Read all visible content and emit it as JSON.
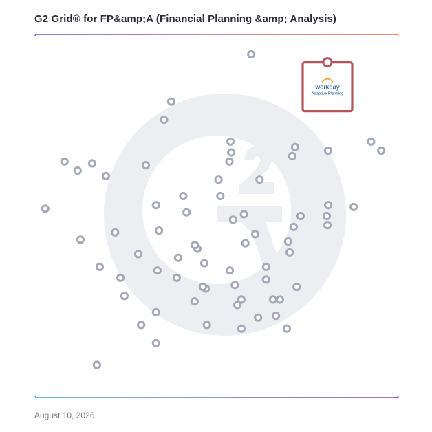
{
  "header": {
    "title": "G2 Grid® for FP&amp;A (Financial Planning &amp; Analysis)"
  },
  "footer": {
    "date": "August 10, 2026"
  },
  "highlight": {
    "brand": "workday",
    "product": "Adaptive Planning",
    "border_color": "#b5565a",
    "brand_color": "#0b4d8f",
    "arc_color": "#f39a1e"
  },
  "colors": {
    "watermark": "#eceef2",
    "point_stroke": "#a3a9b6",
    "frame_top_left": "#6a56c6",
    "frame_top_right": "#f26b3a",
    "frame_bottom_left": "#3fa0d8",
    "frame_bottom_right": "#8a3fb0"
  },
  "chart_data": {
    "type": "scatter",
    "title": "G2 Grid® for FP&amp;A (Financial Planning &amp; Analysis)",
    "xlabel": "",
    "ylabel": "",
    "xlim": [
      0,
      100
    ],
    "ylim": [
      0,
      100
    ],
    "grid": "quadrants",
    "points": [
      {
        "x": 59.5,
        "y": 94.5
      },
      {
        "x": 37.5,
        "y": 81.5
      },
      {
        "x": 35.5,
        "y": 76.5
      },
      {
        "x": 92.5,
        "y": 70.5
      },
      {
        "x": 95.3,
        "y": 68.0
      },
      {
        "x": 80.7,
        "y": 68.0
      },
      {
        "x": 71.6,
        "y": 69.0
      },
      {
        "x": 70.8,
        "y": 66.5
      },
      {
        "x": 53.8,
        "y": 70.5
      },
      {
        "x": 54.0,
        "y": 67.5
      },
      {
        "x": 53.5,
        "y": 65.0
      },
      {
        "x": 8.1,
        "y": 65.0
      },
      {
        "x": 11.7,
        "y": 62.5
      },
      {
        "x": 15.7,
        "y": 64.5
      },
      {
        "x": 19.5,
        "y": 61.0
      },
      {
        "x": 30.5,
        "y": 64.0
      },
      {
        "x": 61.8,
        "y": 60.0
      },
      {
        "x": 50.5,
        "y": 60.0
      },
      {
        "x": 40.8,
        "y": 55.5
      },
      {
        "x": 51.0,
        "y": 55.5
      },
      {
        "x": 33.3,
        "y": 53.0
      },
      {
        "x": 41.7,
        "y": 51.0
      },
      {
        "x": 57.5,
        "y": 50.5
      },
      {
        "x": 54.5,
        "y": 49.0
      },
      {
        "x": 73.1,
        "y": 50.0
      },
      {
        "x": 80.7,
        "y": 53.0
      },
      {
        "x": 87.7,
        "y": 52.5
      },
      {
        "x": 80.3,
        "y": 50.0
      },
      {
        "x": 80.5,
        "y": 47.5
      },
      {
        "x": 71.2,
        "y": 47.0
      },
      {
        "x": 60.6,
        "y": 45.0
      },
      {
        "x": 2.8,
        "y": 52.0
      },
      {
        "x": 12.5,
        "y": 43.5
      },
      {
        "x": 22.0,
        "y": 45.5
      },
      {
        "x": 34.1,
        "y": 46.0
      },
      {
        "x": 57.9,
        "y": 42.5
      },
      {
        "x": 69.7,
        "y": 43.0
      },
      {
        "x": 70.1,
        "y": 40.0
      },
      {
        "x": 44.7,
        "y": 41.0
      },
      {
        "x": 28.4,
        "y": 39.5
      },
      {
        "x": 39.4,
        "y": 38.5
      },
      {
        "x": 46.6,
        "y": 37.0
      },
      {
        "x": 17.8,
        "y": 36.0
      },
      {
        "x": 33.7,
        "y": 35.0
      },
      {
        "x": 53.6,
        "y": 35.0
      },
      {
        "x": 63.6,
        "y": 36.0
      },
      {
        "x": 23.5,
        "y": 33.0
      },
      {
        "x": 39.0,
        "y": 33.0
      },
      {
        "x": 63.6,
        "y": 32.5
      },
      {
        "x": 47.0,
        "y": 30.0
      },
      {
        "x": 46.2,
        "y": 30.5
      },
      {
        "x": 72.0,
        "y": 30.5
      },
      {
        "x": 24.6,
        "y": 28.0
      },
      {
        "x": 43.9,
        "y": 26.5
      },
      {
        "x": 56.8,
        "y": 27.0
      },
      {
        "x": 55.7,
        "y": 25.5
      },
      {
        "x": 65.5,
        "y": 27.0
      },
      {
        "x": 67.4,
        "y": 27.0
      },
      {
        "x": 33.3,
        "y": 23.5
      },
      {
        "x": 61.4,
        "y": 22.0
      },
      {
        "x": 66.3,
        "y": 22.5
      },
      {
        "x": 29.2,
        "y": 20.0
      },
      {
        "x": 47.3,
        "y": 20.0
      },
      {
        "x": 56.8,
        "y": 19.0
      },
      {
        "x": 69.3,
        "y": 19.0
      },
      {
        "x": 33.3,
        "y": 15.0
      },
      {
        "x": 17.0,
        "y": 9.0
      },
      {
        "x": 55.0,
        "y": 31.0
      },
      {
        "x": 44.0,
        "y": 42.0
      }
    ],
    "highlighted_point": {
      "x": 80.5,
      "y": 85.5,
      "label": "workday Adaptive Planning"
    }
  }
}
